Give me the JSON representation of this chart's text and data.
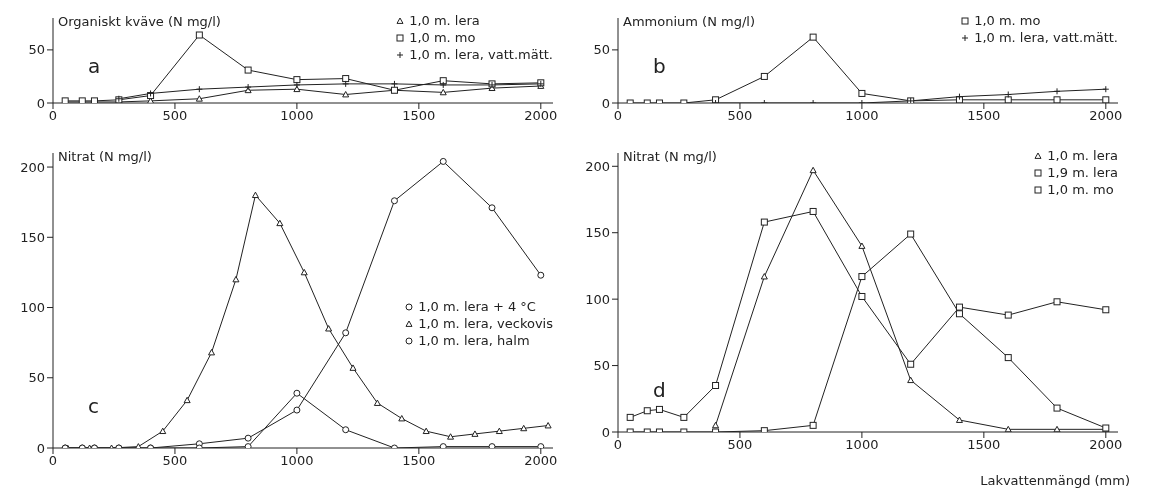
{
  "chart_data": [
    {
      "type": "line",
      "ylabel": "Organiskt kväve (N mg/l)",
      "annotations": [
        "a"
      ],
      "xlim": [
        0,
        2050
      ],
      "xticks": [
        0,
        500,
        1000,
        1500,
        2000
      ],
      "ylim": [
        0,
        80
      ],
      "yticks": [
        0,
        50
      ],
      "grid": false,
      "legend": "top right",
      "line_style": "solid",
      "series": [
        {
          "name": "1,0 m. lera",
          "color": "#222222",
          "marker": "triangle",
          "x": [
            50,
            120,
            170,
            270,
            400,
            600,
            800,
            1000,
            1200,
            1400,
            1600,
            1800,
            2000
          ],
          "values": [
            1,
            1,
            1,
            1,
            2,
            4,
            12,
            13,
            8,
            12,
            10,
            14,
            16
          ]
        },
        {
          "name": "1,0 m. mo",
          "color": "#222222",
          "marker": "square",
          "x": [
            50,
            120,
            170,
            270,
            400,
            600,
            800,
            1000,
            1200,
            1400,
            1600,
            1800,
            2000
          ],
          "values": [
            2,
            2,
            2,
            3,
            7,
            64,
            31,
            22,
            23,
            12,
            21,
            18,
            19
          ]
        },
        {
          "name": "1,0 m. lera, vatt.mätt.",
          "color": "#222222",
          "marker": "cross",
          "x": [
            270,
            400,
            600,
            800,
            1000,
            1200,
            1400,
            1600,
            1800,
            2000
          ],
          "values": [
            4,
            9,
            13,
            15,
            17,
            18,
            18,
            17,
            17,
            18
          ]
        }
      ]
    },
    {
      "type": "line",
      "ylabel": "Ammonium (N mg/l)",
      "annotations": [
        "b"
      ],
      "xlim": [
        0,
        2050
      ],
      "xticks": [
        0,
        500,
        1000,
        1500,
        2000
      ],
      "ylim": [
        0,
        80
      ],
      "yticks": [
        0,
        50
      ],
      "grid": false,
      "legend": "top right",
      "line_style": "solid",
      "series": [
        {
          "name": "1,0 m. mo",
          "color": "#222222",
          "marker": "square",
          "x": [
            50,
            120,
            170,
            270,
            400,
            600,
            800,
            1000,
            1200,
            1400,
            1600,
            1800,
            2000
          ],
          "values": [
            0,
            0,
            0,
            0,
            3,
            25,
            62,
            9,
            2,
            3,
            3,
            3,
            3
          ]
        },
        {
          "name": "1,0 m. lera, vatt.mätt.",
          "color": "#222222",
          "marker": "cross",
          "x": [
            400,
            600,
            800,
            1000,
            1200,
            1400,
            1600,
            1800,
            2000
          ],
          "values": [
            0,
            0,
            0,
            0,
            2,
            6,
            8,
            11,
            13
          ]
        }
      ]
    },
    {
      "type": "line",
      "ylabel": "Nitrat (N mg/l)",
      "annotations": [
        "c"
      ],
      "xlim": [
        0,
        2050
      ],
      "xticks": [
        0,
        500,
        1000,
        1500,
        2000
      ],
      "ylim": [
        0,
        210
      ],
      "yticks": [
        0,
        50,
        100,
        150,
        200
      ],
      "grid": false,
      "legend": "right",
      "line_style": "solid",
      "series": [
        {
          "name": "1,0 m. lera + 4 °C",
          "color": "#222222",
          "marker": "circle",
          "x": [
            50,
            120,
            170,
            270,
            400,
            600,
            800,
            1000,
            1200,
            1400,
            1600,
            1800,
            2000
          ],
          "values": [
            0,
            0,
            0,
            0,
            0,
            3,
            7,
            27,
            82,
            176,
            204,
            171,
            123
          ]
        },
        {
          "name": "1,0 m. lera, veckovis",
          "color": "#222222",
          "marker": "triangle",
          "x": [
            60,
            150,
            240,
            350,
            450,
            550,
            650,
            750,
            830,
            930,
            1030,
            1130,
            1230,
            1330,
            1430,
            1530,
            1630,
            1730,
            1830,
            1930,
            2030
          ],
          "values": [
            0,
            0,
            0,
            1,
            12,
            34,
            68,
            120,
            180,
            160,
            125,
            85,
            57,
            32,
            21,
            12,
            8,
            10,
            12,
            14,
            16
          ]
        },
        {
          "name": "1,0 m. lera, halm",
          "color": "#222222",
          "marker": "circle",
          "x": [
            50,
            120,
            170,
            270,
            400,
            600,
            800,
            1000,
            1200,
            1400,
            1600,
            1800,
            2000
          ],
          "values": [
            0,
            0,
            0,
            0,
            0,
            0,
            1,
            39,
            13,
            0,
            1,
            1,
            1
          ]
        }
      ]
    },
    {
      "type": "line",
      "ylabel": "Nitrat (N mg/l)",
      "xlabel": "Lakvattenmängd (mm)",
      "annotations": [
        "d"
      ],
      "xlim": [
        0,
        2050
      ],
      "xticks": [
        0,
        500,
        1000,
        1500,
        2000
      ],
      "ylim": [
        0,
        210
      ],
      "yticks": [
        0,
        50,
        100,
        150,
        200
      ],
      "grid": false,
      "legend": "top right",
      "line_style": "solid",
      "series": [
        {
          "name": "1,0 m. lera",
          "color": "#222222",
          "marker": "triangle",
          "x": [
            400,
            600,
            800,
            1000,
            1200,
            1400,
            1600,
            1800,
            2000
          ],
          "values": [
            5,
            117,
            197,
            140,
            39,
            9,
            2,
            2,
            2
          ]
        },
        {
          "name": "1,9 m. lera",
          "color": "#222222",
          "marker": "square",
          "x": [
            50,
            120,
            170,
            270,
            400,
            600,
            800,
            1000,
            1200,
            1400,
            1600,
            1800,
            2000
          ],
          "values": [
            0,
            0,
            0,
            0,
            0,
            1,
            5,
            117,
            149,
            89,
            56,
            18,
            3
          ]
        },
        {
          "name": "1,0 m. mo",
          "color": "#222222",
          "marker": "square",
          "x": [
            50,
            120,
            170,
            270,
            400,
            600,
            800,
            1000,
            1200,
            1400,
            1600,
            1800,
            2000
          ],
          "values": [
            11,
            16,
            17,
            11,
            35,
            158,
            166,
            102,
            51,
            94,
            88,
            98,
            92
          ]
        }
      ]
    }
  ]
}
